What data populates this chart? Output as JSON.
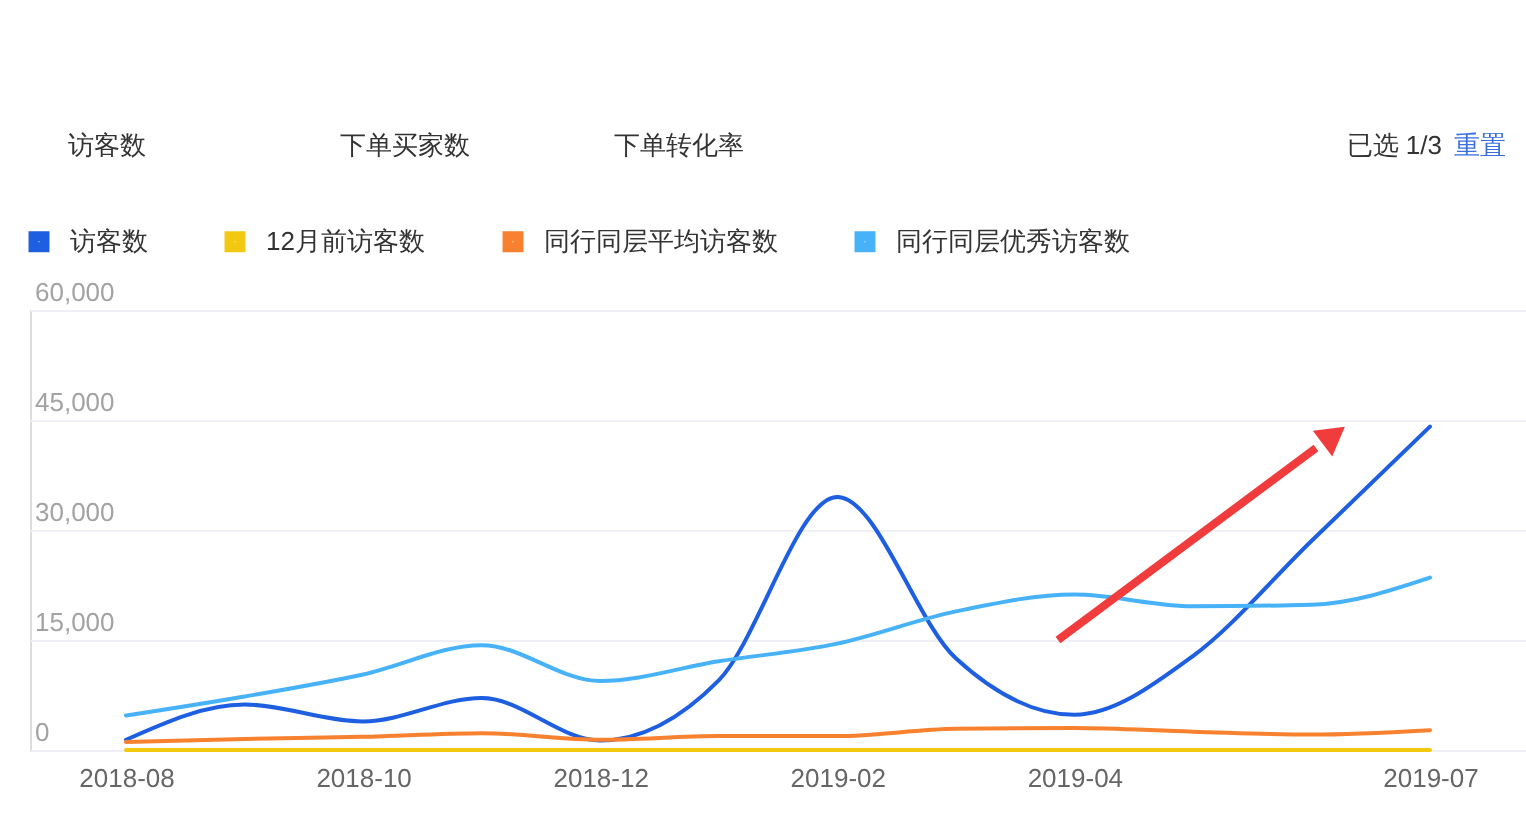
{
  "chart_data": {
    "type": "line",
    "annotations": [
      "访客数",
      "下单买家数",
      "下单转化率",
      "已选 1/3",
      "重置"
    ],
    "categories": [
      "2018-08",
      null,
      "2018-10",
      null,
      "2018-12",
      null,
      "2019-02",
      null,
      "2019-04",
      null,
      null,
      "2019-07"
    ],
    "series": [
      {
        "name": "访客数",
        "color": "#1d5fe0",
        "values": [
          1400,
          6200,
          3900,
          7100,
          1300,
          9500,
          34500,
          12500,
          4800,
          12800,
          28500,
          44100
        ]
      },
      {
        "name": "12月前访客数",
        "color": "#f2c811",
        "values": [
          0,
          0,
          0,
          0,
          0,
          0,
          0,
          0,
          0,
          0,
          0,
          0
        ]
      },
      {
        "name": "同行同层平均访客数",
        "color": "#f7812e",
        "values": [
          1100,
          1500,
          1800,
          2300,
          1400,
          1900,
          1900,
          2900,
          3000,
          2500,
          2100,
          2700
        ]
      },
      {
        "name": "同行同层优秀访客数",
        "color": "#47b2f7",
        "values": [
          4700,
          7300,
          10300,
          14300,
          9400,
          12100,
          14500,
          18900,
          21200,
          19600,
          19800,
          23500
        ]
      }
    ],
    "ylim": [
      0,
      60000
    ],
    "yticks": [
      0,
      {
        "value": 15000,
        "label": "15,000"
      },
      {
        "value": 30000,
        "label": "30,000"
      },
      {
        "value": 45000,
        "label": "45,000"
      },
      {
        "value": 60000,
        "label": "60,000"
      }
    ],
    "grid": "y",
    "legend": "top left"
  }
}
